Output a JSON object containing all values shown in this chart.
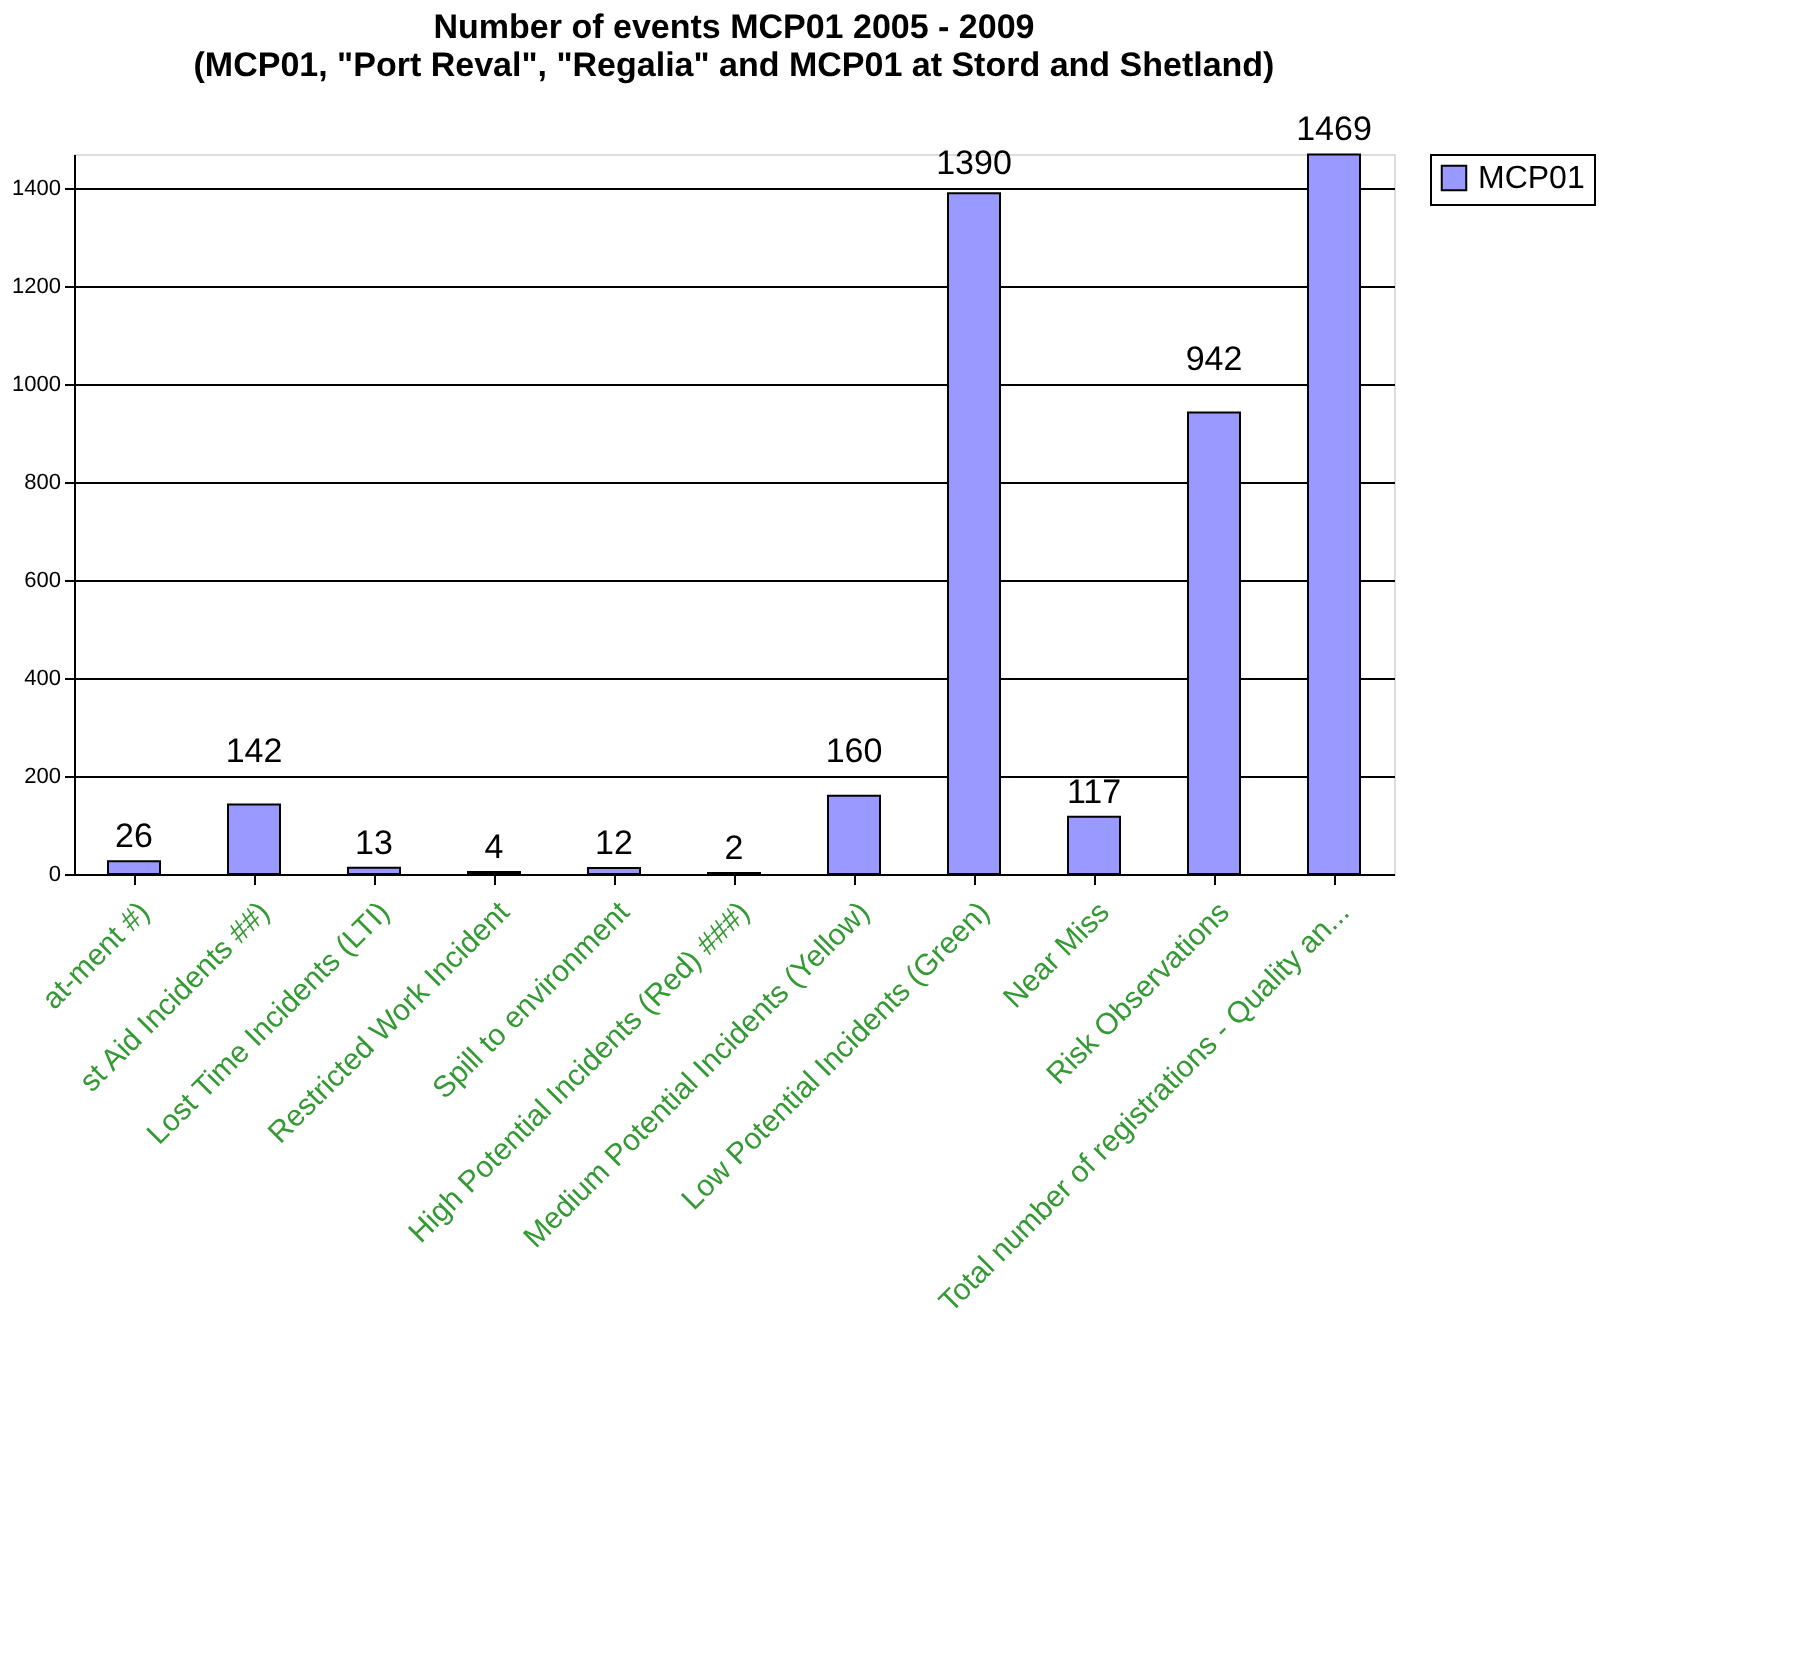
{
  "chart_data": {
    "type": "bar",
    "title": [
      "Number of events MCP01 2005 - 2009",
      "(MCP01, \"Port Reval\", \"Regalia\" and MCP01 at Stord and Shetland)"
    ],
    "categories": [
      "at-ment #)",
      "st Aid Incidents ##)",
      "Lost Time Incidents (LTI)",
      "Restricted Work Incident",
      "Spill to environment",
      "High Potential Incidents (Red) ###)",
      "Medium Potential Incidents (Yellow)",
      "Low Potential Incidents (Green)",
      "Near Miss",
      "Risk Observations",
      "Total number of registrations - Quality an..."
    ],
    "series": [
      {
        "name": "MCP01",
        "color": "#9999ff",
        "values": [
          26,
          142,
          13,
          4,
          12,
          2,
          160,
          1390,
          117,
          942,
          1469
        ]
      }
    ],
    "ylim": [
      0,
      1470
    ],
    "yticks": [
      0,
      200,
      400,
      600,
      800,
      1000,
      1200,
      1400
    ],
    "grid": "y",
    "legend": "right",
    "data_labels": true
  }
}
